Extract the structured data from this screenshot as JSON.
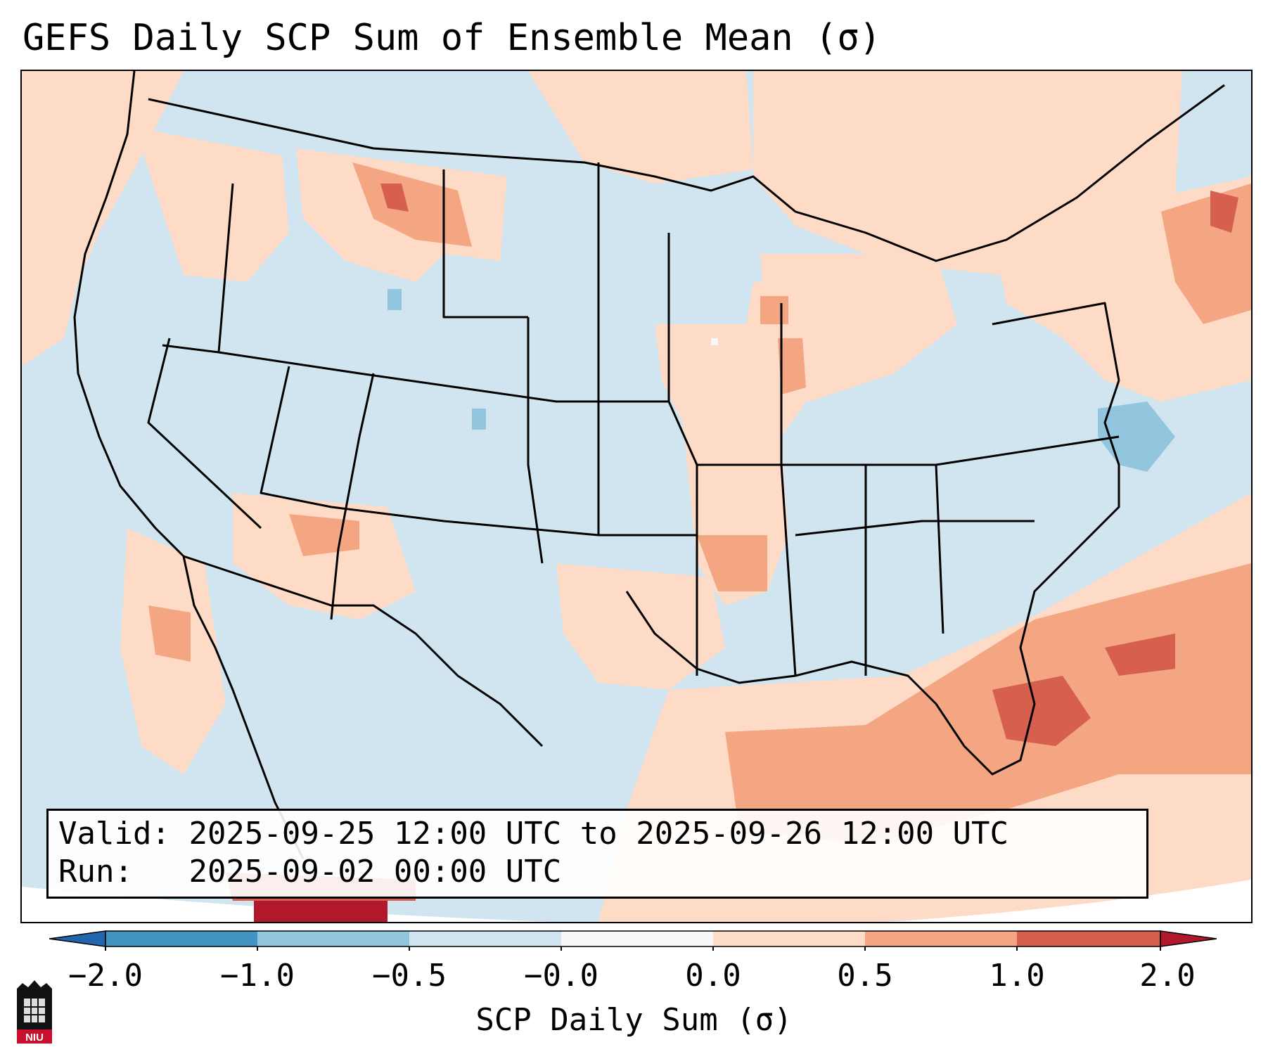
{
  "title": "GEFS Daily SCP Sum of Ensemble Mean (σ)",
  "valid": {
    "valid_label": "Valid:",
    "valid_text": "2025-09-25 12:00 UTC to 2025-09-26 12:00 UTC",
    "run_label": "Run:",
    "run_text": "2025-09-02 00:00 UTC"
  },
  "colorbar": {
    "label": "SCP Daily Sum (σ)",
    "ticks": [
      "−2.0",
      "−1.0",
      "−0.5",
      "−0.0",
      "0.0",
      "0.5",
      "1.0",
      "2.0"
    ],
    "bins": [
      {
        "range": "below -2.0",
        "color": "#2166ac"
      },
      {
        "range": "-2.0 to -1.0",
        "color": "#4393c3"
      },
      {
        "range": "-1.0 to -0.5",
        "color": "#92c5de"
      },
      {
        "range": "-0.5 to -0.0",
        "color": "#d1e5f0"
      },
      {
        "range": "-0.0 to 0.0",
        "color": "#f7f7f7"
      },
      {
        "range": "0.0 to 0.5",
        "color": "#fddbc7"
      },
      {
        "range": "0.5 to 1.0",
        "color": "#f4a582"
      },
      {
        "range": "1.0 to 2.0",
        "color": "#d6604d"
      },
      {
        "range": "above 2.0",
        "color": "#b2182b"
      }
    ]
  },
  "logo": {
    "text": "NIU"
  },
  "map": {
    "background_value_color": "#d1e5f0",
    "anomaly_regions": [
      {
        "area": "Pacific Northwest offshore",
        "level": "0.0 to 0.5"
      },
      {
        "area": "Northern Rockies / Montana",
        "level": "0.5 to 1.0"
      },
      {
        "area": "Upper Midwest / Great Lakes",
        "level": "0.0 to 0.5"
      },
      {
        "area": "Northeast / New England",
        "level": "0.5 to 1.0"
      },
      {
        "area": "Mississippi Valley",
        "level": "0.0 to 0.5"
      },
      {
        "area": "Gulf of Mexico / Florida / Western Atlantic",
        "level": "0.5 to 2.0"
      },
      {
        "area": "Western Atlantic off Mid-Atlantic coast",
        "level": "-1.0 to -0.5"
      }
    ]
  }
}
